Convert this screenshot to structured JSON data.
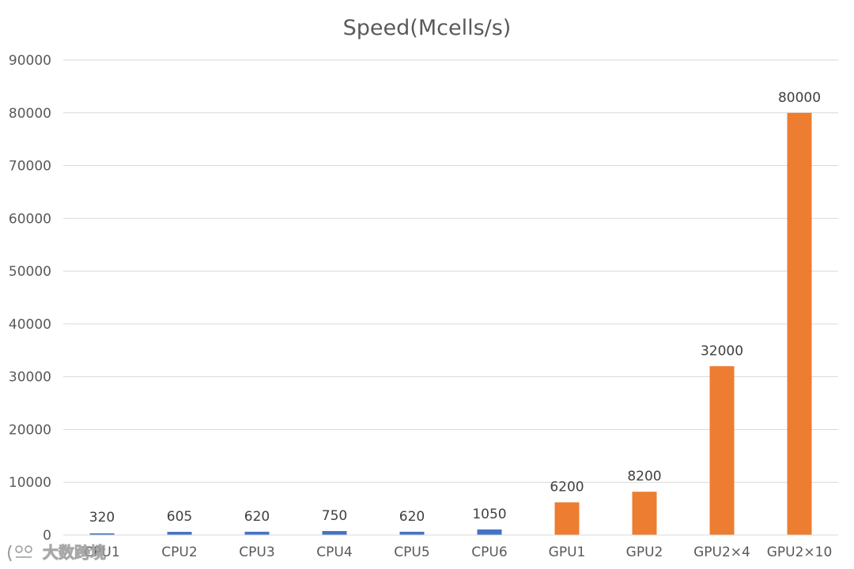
{
  "chart_data": {
    "type": "bar",
    "title": "Speed(Mcells/s)",
    "xlabel": "",
    "ylabel": "",
    "ylim": [
      0,
      90000
    ],
    "y_ticks": [
      0,
      10000,
      20000,
      30000,
      40000,
      50000,
      60000,
      70000,
      80000,
      90000
    ],
    "categories": [
      "CPU1",
      "CPU2",
      "CPU3",
      "CPU4",
      "CPU5",
      "CPU6",
      "GPU1",
      "GPU2",
      "GPU2×4",
      "GPU2×10"
    ],
    "values": [
      320,
      605,
      620,
      750,
      620,
      1050,
      6200,
      8200,
      32000,
      80000
    ],
    "data_labels": [
      "320",
      "605",
      "620",
      "750",
      "620",
      "1050",
      "6200",
      "8200",
      "32000",
      "80000"
    ],
    "bar_colors": [
      "#4472c4",
      "#4472c4",
      "#4472c4",
      "#4472c4",
      "#4472c4",
      "#4472c4",
      "#ed7d31",
      "#ed7d31",
      "#ed7d31",
      "#ed7d31"
    ],
    "grid": true,
    "legend": "none"
  },
  "watermark": {
    "text": "大数跨境"
  },
  "colors": {
    "cpu": "#4472c4",
    "gpu": "#ed7d31",
    "grid": "#d9d9d9",
    "text": "#595959"
  }
}
